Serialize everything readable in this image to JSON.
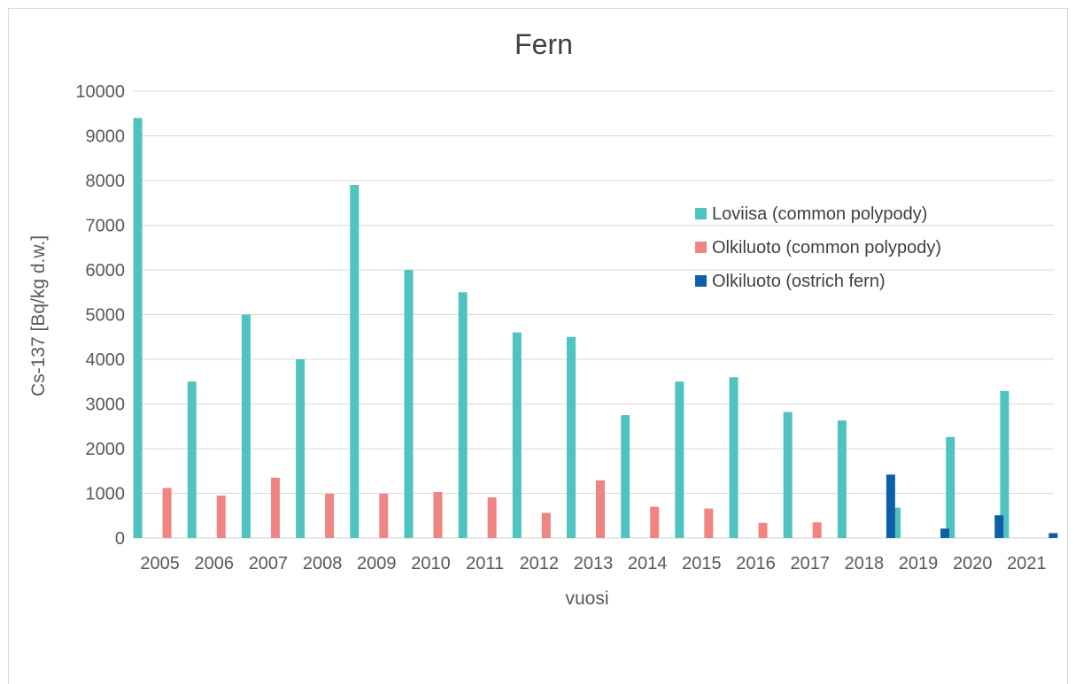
{
  "chart_data": {
    "type": "bar",
    "title": "Fern",
    "xlabel": "vuosi",
    "ylabel": "Cs-137 [Bq/kg d.w.]",
    "ylim": [
      0,
      10000
    ],
    "yticks": [
      0,
      1000,
      2000,
      3000,
      4000,
      5000,
      6000,
      7000,
      8000,
      9000,
      10000
    ],
    "grid": true,
    "legend_placement": "top-right",
    "categories": [
      "2005",
      "2006",
      "2007",
      "2008",
      "2009",
      "2010",
      "2011",
      "2012",
      "2013",
      "2014",
      "2015",
      "2016",
      "2017",
      "2018",
      "2019",
      "2020",
      "2021"
    ],
    "series": [
      {
        "name": "Loviisa (common polypody)",
        "color": "#4fc3c0",
        "values": [
          9400,
          3500,
          5000,
          4000,
          7900,
          6000,
          5500,
          4600,
          4500,
          2750,
          3500,
          3600,
          2820,
          2630,
          680,
          2260,
          3290
        ]
      },
      {
        "name": "Olkiluoto (common polypody)",
        "color": "#f08482",
        "values": [
          1120,
          950,
          1350,
          990,
          990,
          1030,
          910,
          560,
          1290,
          700,
          660,
          340,
          350,
          null,
          null,
          null,
          null
        ]
      },
      {
        "name": "Olkiluoto (ostrich fern)",
        "color": "#0f5fa8",
        "values": [
          null,
          null,
          null,
          null,
          null,
          null,
          null,
          null,
          null,
          null,
          null,
          null,
          null,
          1420,
          210,
          510,
          110
        ]
      }
    ]
  }
}
